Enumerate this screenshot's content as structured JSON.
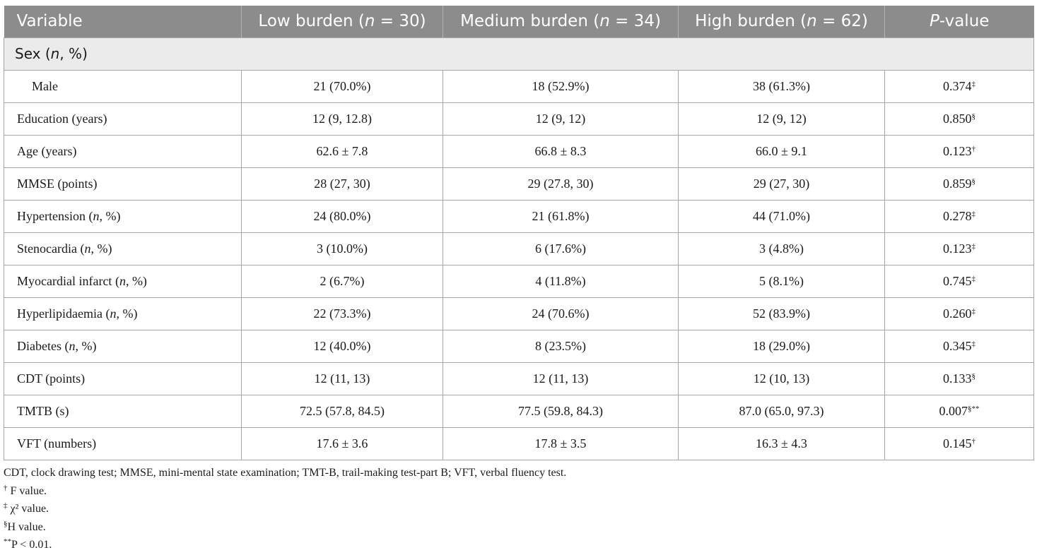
{
  "table": {
    "headers": [
      {
        "text": "Variable"
      },
      {
        "pre": "Low burden (",
        "italic": "n",
        "post": " = 30)"
      },
      {
        "pre": "Medium burden (",
        "italic": "n",
        "post": " = 34)"
      },
      {
        "pre": "High burden (",
        "italic": "n",
        "post": " = 62)"
      },
      {
        "pre": "",
        "italic": "P",
        "post": "-value"
      }
    ],
    "section": {
      "pre": "Sex (",
      "italic": "n",
      "post": ", %)"
    },
    "rows": [
      {
        "pre": "Male",
        "italic": "",
        "post": "",
        "indent": true,
        "low": "21 (70.0%)",
        "medium": "18 (52.9%)",
        "high": "38 (61.3%)",
        "p": "0.374",
        "p_mark": "‡"
      },
      {
        "pre": "Education (years)",
        "italic": "",
        "post": "",
        "low": "12 (9, 12.8)",
        "medium": "12 (9, 12)",
        "high": "12 (9, 12)",
        "p": "0.850",
        "p_mark": "§"
      },
      {
        "pre": "Age (years)",
        "italic": "",
        "post": "",
        "low": "62.6 ± 7.8",
        "medium": "66.8 ± 8.3",
        "high": "66.0 ± 9.1",
        "p": "0.123",
        "p_mark": "†"
      },
      {
        "pre": "MMSE (points)",
        "italic": "",
        "post": "",
        "low": "28 (27, 30)",
        "medium": "29 (27.8, 30)",
        "high": "29 (27, 30)",
        "p": "0.859",
        "p_mark": "§"
      },
      {
        "pre": "Hypertension (",
        "italic": "n",
        "post": ", %)",
        "low": "24 (80.0%)",
        "medium": "21 (61.8%)",
        "high": "44 (71.0%)",
        "p": "0.278",
        "p_mark": "‡"
      },
      {
        "pre": "Stenocardia (",
        "italic": "n",
        "post": ", %)",
        "low": "3 (10.0%)",
        "medium": "6 (17.6%)",
        "high": "3 (4.8%)",
        "p": "0.123",
        "p_mark": "‡"
      },
      {
        "pre": "Myocardial infarct (",
        "italic": "n",
        "post": ", %)",
        "low": "2 (6.7%)",
        "medium": "4 (11.8%)",
        "high": "5 (8.1%)",
        "p": "0.745",
        "p_mark": "‡"
      },
      {
        "pre": "Hyperlipidaemia (",
        "italic": "n",
        "post": ", %)",
        "low": "22 (73.3%)",
        "medium": "24 (70.6%)",
        "high": "52 (83.9%)",
        "p": "0.260",
        "p_mark": "‡"
      },
      {
        "pre": "Diabetes (",
        "italic": "n",
        "post": ", %)",
        "low": "12 (40.0%)",
        "medium": "8 (23.5%)",
        "high": "18 (29.0%)",
        "p": "0.345",
        "p_mark": "‡"
      },
      {
        "pre": "CDT (points)",
        "italic": "",
        "post": "",
        "low": "12 (11, 13)",
        "medium": "12 (11, 13)",
        "high": "12 (10, 13)",
        "p": "0.133",
        "p_mark": "§"
      },
      {
        "pre": "TMTB (s)",
        "italic": "",
        "post": "",
        "low": "72.5 (57.8, 84.5)",
        "medium": "77.5 (59.8, 84.3)",
        "high": "87.0 (65.0, 97.3)",
        "p": "0.007",
        "p_mark": "§**"
      },
      {
        "pre": "VFT (numbers)",
        "italic": "",
        "post": "",
        "low": "17.6 ± 3.6",
        "medium": "17.8 ± 3.5",
        "high": "16.3 ± 4.3",
        "p": "0.145",
        "p_mark": "†"
      }
    ]
  },
  "footnotes": {
    "abbreviations": "CDT, clock drawing test; MMSE, mini-mental state examination; TMT-B, trail-making test-part B; VFT, verbal fluency test.",
    "notes": [
      {
        "mark": "†",
        "text": " F value."
      },
      {
        "mark": "‡",
        "text": " χ² value."
      },
      {
        "mark": "§",
        "text": "H value."
      },
      {
        "mark": "**",
        "text": "P < 0.01."
      }
    ]
  }
}
